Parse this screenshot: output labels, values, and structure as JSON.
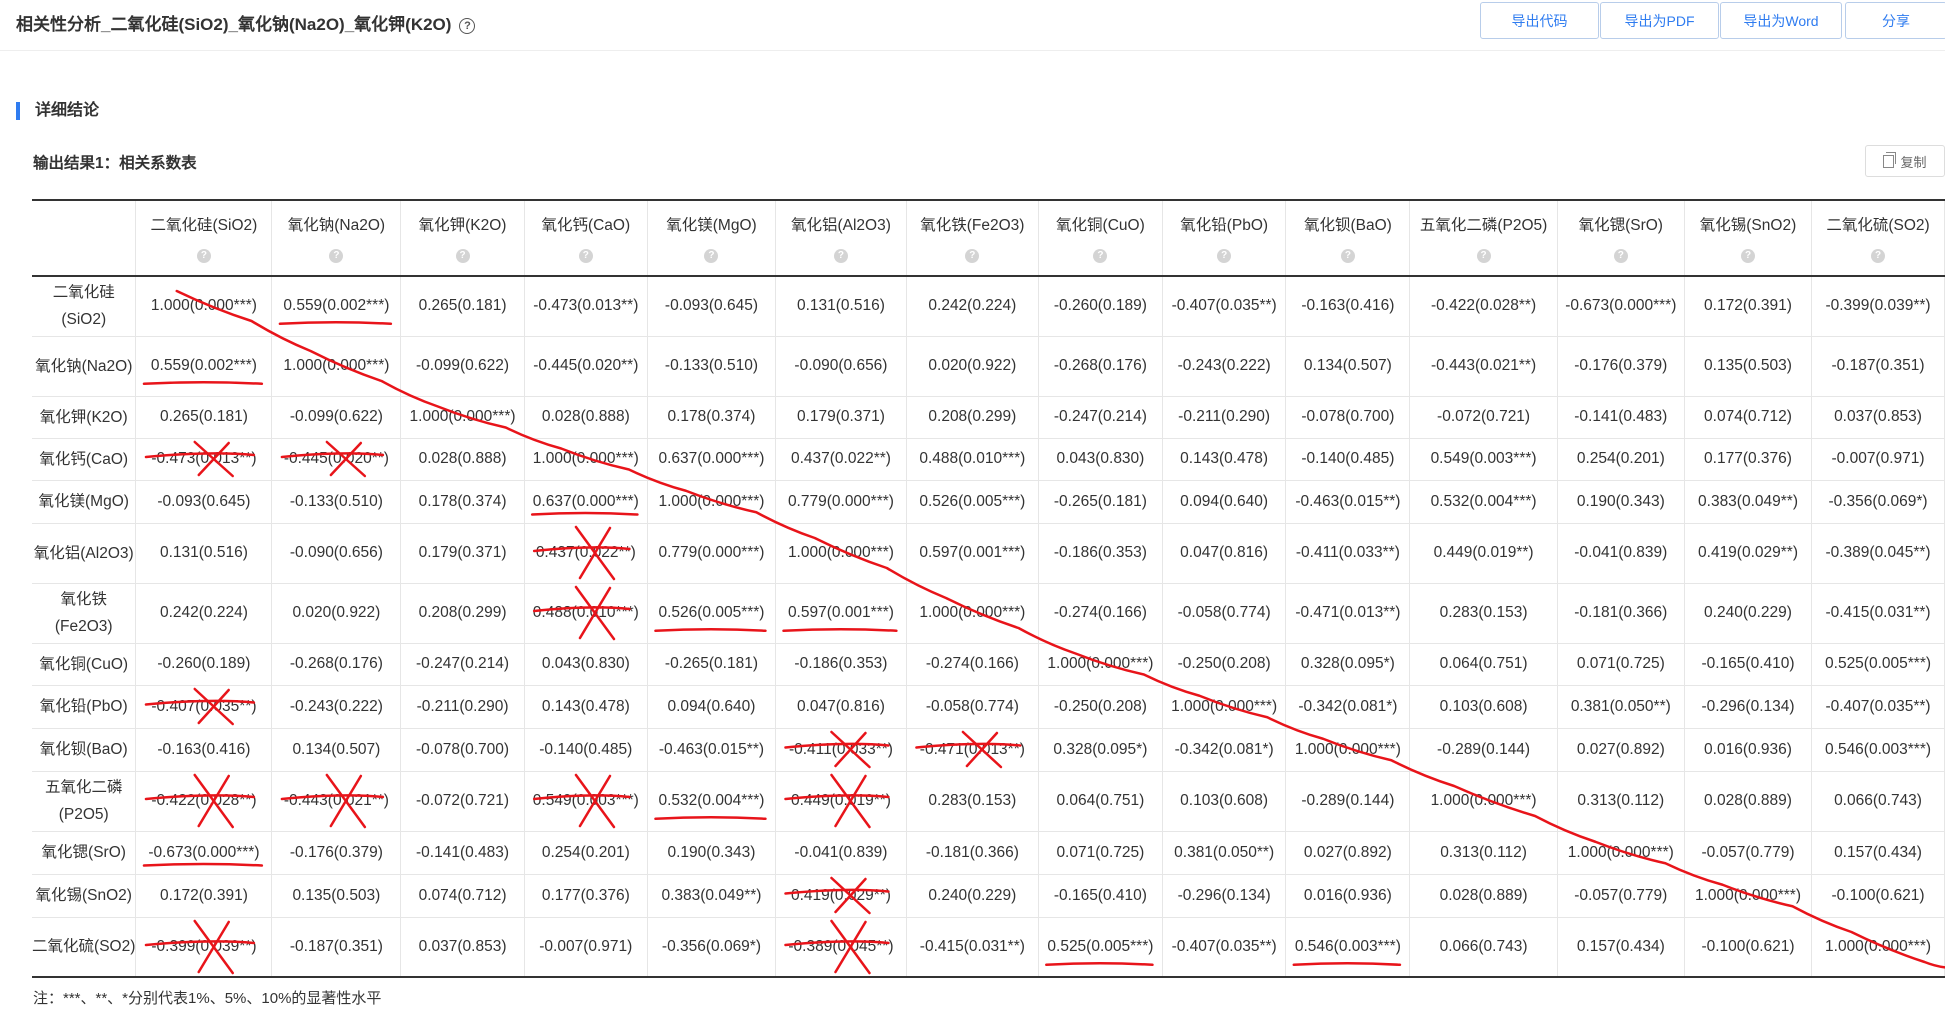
{
  "header": {
    "title": "相关性分析_二氧化硅(SiO2)_氧化钠(Na2O)_氧化钾(K2O)",
    "buttons": [
      "导出代码",
      "导出为PDF",
      "导出为Word",
      "分享"
    ]
  },
  "section_title": "详细结论",
  "subtitle": "输出结果1：相关系数表",
  "copy_label": "复制",
  "table": {
    "columns": [
      "二氧化硅(SiO2)",
      "氧化钠(Na2O)",
      "氧化钾(K2O)",
      "氧化钙(CaO)",
      "氧化镁(MgO)",
      "氧化铝(Al2O3)",
      "氧化铁(Fe2O3)",
      "氧化铜(CuO)",
      "氧化铅(PbO)",
      "氧化钡(BaO)",
      "五氧化二磷(P2O5)",
      "氧化锶(SrO)",
      "氧化锡(SnO2)",
      "二氧化硫(SO2)"
    ],
    "rows": [
      {
        "label": "二氧化硅(SiO2)",
        "cells": [
          "1.000(0.000***)",
          "0.559(0.002***)",
          "0.265(0.181)",
          "-0.473(0.013**)",
          "-0.093(0.645)",
          "0.131(0.516)",
          "0.242(0.224)",
          "-0.260(0.189)",
          "-0.407(0.035**)",
          "-0.163(0.416)",
          "-0.422(0.028**)",
          "-0.673(0.000***)",
          "0.172(0.391)",
          "-0.399(0.039**)"
        ]
      },
      {
        "label": "氧化钠(Na2O)",
        "cells": [
          "0.559(0.002***)",
          "1.000(0.000***)",
          "-0.099(0.622)",
          "-0.445(0.020**)",
          "-0.133(0.510)",
          "-0.090(0.656)",
          "0.020(0.922)",
          "-0.268(0.176)",
          "-0.243(0.222)",
          "0.134(0.507)",
          "-0.443(0.021**)",
          "-0.176(0.379)",
          "0.135(0.503)",
          "-0.187(0.351)"
        ]
      },
      {
        "label": "氧化钾(K2O)",
        "cells": [
          "0.265(0.181)",
          "-0.099(0.622)",
          "1.000(0.000***)",
          "0.028(0.888)",
          "0.178(0.374)",
          "0.179(0.371)",
          "0.208(0.299)",
          "-0.247(0.214)",
          "-0.211(0.290)",
          "-0.078(0.700)",
          "-0.072(0.721)",
          "-0.141(0.483)",
          "0.074(0.712)",
          "0.037(0.853)"
        ]
      },
      {
        "label": "氧化钙(CaO)",
        "cells": [
          "-0.473(0.013**)",
          "-0.445(0.020**)",
          "0.028(0.888)",
          "1.000(0.000***)",
          "0.637(0.000***)",
          "0.437(0.022**)",
          "0.488(0.010***)",
          "0.043(0.830)",
          "0.143(0.478)",
          "-0.140(0.485)",
          "0.549(0.003***)",
          "0.254(0.201)",
          "0.177(0.376)",
          "-0.007(0.971)"
        ]
      },
      {
        "label": "氧化镁(MgO)",
        "cells": [
          "-0.093(0.645)",
          "-0.133(0.510)",
          "0.178(0.374)",
          "0.637(0.000***)",
          "1.000(0.000***)",
          "0.779(0.000***)",
          "0.526(0.005***)",
          "-0.265(0.181)",
          "0.094(0.640)",
          "-0.463(0.015**)",
          "0.532(0.004***)",
          "0.190(0.343)",
          "0.383(0.049**)",
          "-0.356(0.069*)"
        ]
      },
      {
        "label": "氧化铝(Al2O3)",
        "cells": [
          "0.131(0.516)",
          "-0.090(0.656)",
          "0.179(0.371)",
          "0.437(0.022**)",
          "0.779(0.000***)",
          "1.000(0.000***)",
          "0.597(0.001***)",
          "-0.186(0.353)",
          "0.047(0.816)",
          "-0.411(0.033**)",
          "0.449(0.019**)",
          "-0.041(0.839)",
          "0.419(0.029**)",
          "-0.389(0.045**)"
        ]
      },
      {
        "label": "氧化铁(Fe2O3)",
        "cells": [
          "0.242(0.224)",
          "0.020(0.922)",
          "0.208(0.299)",
          "0.488(0.010***)",
          "0.526(0.005***)",
          "0.597(0.001***)",
          "1.000(0.000***)",
          "-0.274(0.166)",
          "-0.058(0.774)",
          "-0.471(0.013**)",
          "0.283(0.153)",
          "-0.181(0.366)",
          "0.240(0.229)",
          "-0.415(0.031**)"
        ]
      },
      {
        "label": "氧化铜(CuO)",
        "cells": [
          "-0.260(0.189)",
          "-0.268(0.176)",
          "-0.247(0.214)",
          "0.043(0.830)",
          "-0.265(0.181)",
          "-0.186(0.353)",
          "-0.274(0.166)",
          "1.000(0.000***)",
          "-0.250(0.208)",
          "0.328(0.095*)",
          "0.064(0.751)",
          "0.071(0.725)",
          "-0.165(0.410)",
          "0.525(0.005***)"
        ]
      },
      {
        "label": "氧化铅(PbO)",
        "cells": [
          "-0.407(0.035**)",
          "-0.243(0.222)",
          "-0.211(0.290)",
          "0.143(0.478)",
          "0.094(0.640)",
          "0.047(0.816)",
          "-0.058(0.774)",
          "-0.250(0.208)",
          "1.000(0.000***)",
          "-0.342(0.081*)",
          "0.103(0.608)",
          "0.381(0.050**)",
          "-0.296(0.134)",
          "-0.407(0.035**)"
        ]
      },
      {
        "label": "氧化钡(BaO)",
        "cells": [
          "-0.163(0.416)",
          "0.134(0.507)",
          "-0.078(0.700)",
          "-0.140(0.485)",
          "-0.463(0.015**)",
          "-0.411(0.033**)",
          "-0.471(0.013**)",
          "0.328(0.095*)",
          "-0.342(0.081*)",
          "1.000(0.000***)",
          "-0.289(0.144)",
          "0.027(0.892)",
          "0.016(0.936)",
          "0.546(0.003***)"
        ]
      },
      {
        "label": "五氧化二磷(P2O5)",
        "cells": [
          "-0.422(0.028**)",
          "-0.443(0.021**)",
          "-0.072(0.721)",
          "0.549(0.003***)",
          "0.532(0.004***)",
          "0.449(0.019**)",
          "0.283(0.153)",
          "0.064(0.751)",
          "0.103(0.608)",
          "-0.289(0.144)",
          "1.000(0.000***)",
          "0.313(0.112)",
          "0.028(0.889)",
          "0.066(0.743)"
        ]
      },
      {
        "label": "氧化锶(SrO)",
        "cells": [
          "-0.673(0.000***)",
          "-0.176(0.379)",
          "-0.141(0.483)",
          "0.254(0.201)",
          "0.190(0.343)",
          "-0.041(0.839)",
          "-0.181(0.366)",
          "0.071(0.725)",
          "0.381(0.050**)",
          "0.027(0.892)",
          "0.313(0.112)",
          "1.000(0.000***)",
          "-0.057(0.779)",
          "0.157(0.434)"
        ]
      },
      {
        "label": "氧化锡(SnO2)",
        "cells": [
          "0.172(0.391)",
          "0.135(0.503)",
          "0.074(0.712)",
          "0.177(0.376)",
          "0.383(0.049**)",
          "0.419(0.029**)",
          "0.240(0.229)",
          "-0.165(0.410)",
          "-0.296(0.134)",
          "0.016(0.936)",
          "0.028(0.889)",
          "-0.057(0.779)",
          "1.000(0.000***)",
          "-0.100(0.621)"
        ]
      },
      {
        "label": "二氧化硫(SO2)",
        "cells": [
          "-0.399(0.039**)",
          "-0.187(0.351)",
          "0.037(0.853)",
          "-0.007(0.971)",
          "-0.356(0.069*)",
          "-0.389(0.045**)",
          "-0.415(0.031**)",
          "0.525(0.005***)",
          "-0.407(0.035**)",
          "0.546(0.003***)",
          "0.066(0.743)",
          "0.157(0.434)",
          "-0.100(0.621)",
          "1.000(0.000***)"
        ]
      }
    ]
  },
  "note": "注：***、**、*分别代表1%、5%、10%的显著性水平",
  "annotation": {
    "ink_color": "#e8141a",
    "diagonal_line": true,
    "underlined": [
      [
        0,
        1
      ],
      [
        1,
        0
      ],
      [
        4,
        3
      ],
      [
        6,
        4
      ],
      [
        6,
        5
      ],
      [
        10,
        4
      ],
      [
        11,
        0
      ],
      [
        13,
        7
      ],
      [
        13,
        9
      ]
    ],
    "crossed": [
      [
        3,
        0
      ],
      [
        3,
        1
      ],
      [
        5,
        3
      ],
      [
        6,
        3
      ],
      [
        8,
        0
      ],
      [
        9,
        5
      ],
      [
        9,
        6
      ],
      [
        10,
        0
      ],
      [
        10,
        1
      ],
      [
        10,
        3
      ],
      [
        10,
        5
      ],
      [
        12,
        5
      ],
      [
        13,
        0
      ],
      [
        13,
        5
      ]
    ]
  }
}
